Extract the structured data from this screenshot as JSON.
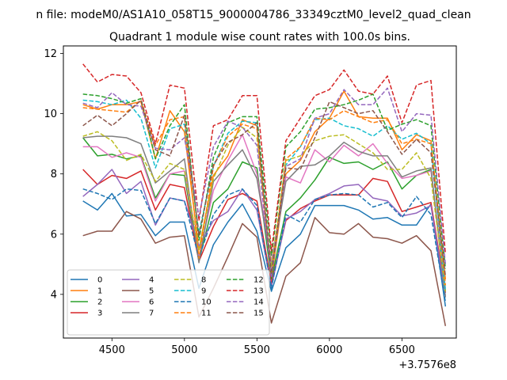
{
  "suptitle": "n file: modeM0/AS1A10_058T15_9000004786_33349cztM0_level2_quad_clean",
  "chart_data": {
    "type": "line",
    "title": "Quadrant 1 module wise count rates with 100.0s bins.",
    "xlabel": "",
    "ylabel": "",
    "x_offset_label": "+3.7576e8",
    "xlim": [
      4165,
      6875
    ],
    "ylim": [
      2.55,
      12.25
    ],
    "xticks": [
      4500,
      5000,
      5500,
      6000,
      6500
    ],
    "yticks": [
      4,
      6,
      8,
      10,
      12
    ],
    "grid": false,
    "legend_position": "lower-left",
    "x": [
      4300,
      4400,
      4500,
      4600,
      4700,
      4800,
      4900,
      5000,
      5100,
      5200,
      5300,
      5400,
      5500,
      5600,
      5700,
      5800,
      5900,
      6000,
      6100,
      6200,
      6300,
      6400,
      6500,
      6600,
      6700,
      6800
    ],
    "series": [
      {
        "name": "0",
        "color": "#1f77b4",
        "dash": "solid",
        "values": [
          7.1,
          6.8,
          7.35,
          6.6,
          6.65,
          5.95,
          6.4,
          6.4,
          4.2,
          5.65,
          6.4,
          7.0,
          6.1,
          4.1,
          5.55,
          6.0,
          6.95,
          6.95,
          6.95,
          6.8,
          6.5,
          6.55,
          6.3,
          6.3,
          7.0,
          3.6
        ]
      },
      {
        "name": "1",
        "color": "#ff7f0e",
        "dash": "solid",
        "values": [
          10.3,
          10.15,
          10.3,
          10.3,
          10.4,
          8.5,
          10.1,
          9.4,
          5.5,
          7.95,
          8.6,
          9.8,
          9.6,
          4.5,
          8.0,
          8.45,
          9.4,
          9.85,
          10.75,
          9.9,
          9.85,
          9.85,
          8.8,
          9.3,
          9.1,
          4.5
        ]
      },
      {
        "name": "2",
        "color": "#2ca02c",
        "dash": "solid",
        "values": [
          9.2,
          8.6,
          8.65,
          8.5,
          8.6,
          7.2,
          8.0,
          7.95,
          5.1,
          7.05,
          7.5,
          8.4,
          8.2,
          4.5,
          6.75,
          7.2,
          7.8,
          8.55,
          8.35,
          8.4,
          8.15,
          8.4,
          7.5,
          7.95,
          8.15,
          4.1
        ]
      },
      {
        "name": "3",
        "color": "#d62728",
        "dash": "solid",
        "values": [
          8.15,
          7.65,
          7.95,
          7.85,
          8.1,
          6.8,
          7.65,
          7.55,
          5.1,
          6.25,
          7.15,
          7.35,
          7.1,
          4.35,
          6.45,
          6.85,
          7.1,
          7.3,
          7.3,
          7.3,
          7.85,
          7.75,
          6.75,
          6.9,
          7.05,
          4.05
        ]
      },
      {
        "name": "4",
        "color": "#9467bd",
        "dash": "solid",
        "values": [
          7.25,
          7.65,
          8.15,
          7.35,
          7.75,
          6.3,
          7.2,
          7.1,
          5.6,
          6.45,
          6.75,
          7.5,
          6.8,
          4.25,
          6.5,
          6.75,
          7.15,
          7.35,
          7.6,
          7.65,
          7.2,
          7.1,
          6.6,
          6.7,
          6.95,
          3.95
        ]
      },
      {
        "name": "5",
        "color": "#8c564b",
        "dash": "solid",
        "values": [
          5.95,
          6.1,
          6.1,
          6.75,
          6.5,
          5.7,
          5.9,
          5.95,
          3.25,
          4.2,
          5.25,
          6.35,
          5.9,
          3.05,
          4.6,
          5.05,
          6.55,
          6.05,
          6.0,
          6.35,
          5.9,
          5.85,
          5.7,
          5.95,
          5.45,
          2.95
        ]
      },
      {
        "name": "6",
        "color": "#e377c2",
        "dash": "solid",
        "values": [
          8.9,
          8.9,
          8.55,
          8.7,
          8.55,
          7.1,
          8.0,
          8.1,
          5.25,
          7.45,
          8.45,
          9.3,
          8.0,
          5.1,
          7.9,
          7.7,
          8.8,
          8.4,
          8.95,
          8.6,
          9.0,
          8.35,
          7.85,
          7.95,
          8.1,
          4.2
        ]
      },
      {
        "name": "7",
        "color": "#7f7f7f",
        "dash": "solid",
        "values": [
          9.2,
          9.25,
          9.25,
          9.2,
          9.0,
          7.7,
          8.1,
          8.5,
          5.05,
          7.75,
          8.3,
          8.8,
          7.85,
          4.95,
          7.75,
          8.25,
          8.3,
          8.6,
          9.05,
          8.75,
          8.6,
          8.6,
          7.9,
          8.1,
          8.2,
          3.9
        ]
      },
      {
        "name": "8",
        "color": "#bcbd22",
        "dash": "dashed",
        "values": [
          9.25,
          9.4,
          9.1,
          8.45,
          8.65,
          7.75,
          8.35,
          8.15,
          5.45,
          7.85,
          8.95,
          9.55,
          9.2,
          4.9,
          8.45,
          8.6,
          9.1,
          9.25,
          9.3,
          9.0,
          8.7,
          8.15,
          8.15,
          8.7,
          7.85,
          4.1
        ]
      },
      {
        "name": "9",
        "color": "#17becf",
        "dash": "dashed",
        "values": [
          10.45,
          10.4,
          10.3,
          10.45,
          9.85,
          8.2,
          9.5,
          9.65,
          6.05,
          8.25,
          9.35,
          9.75,
          9.7,
          4.7,
          8.3,
          8.9,
          9.8,
          9.85,
          9.6,
          9.5,
          9.25,
          9.6,
          9.15,
          9.35,
          9.0,
          4.1
        ]
      },
      {
        "name": "10",
        "color": "#1f77b4",
        "dash": "dashed",
        "values": [
          7.5,
          7.35,
          7.15,
          7.5,
          7.45,
          6.35,
          7.2,
          7.1,
          5.2,
          6.65,
          7.3,
          7.5,
          6.95,
          4.2,
          6.65,
          6.4,
          7.15,
          7.3,
          7.35,
          7.3,
          6.9,
          7.05,
          6.55,
          7.25,
          6.65,
          3.75
        ]
      },
      {
        "name": "11",
        "color": "#ff7f0e",
        "dash": "dashed",
        "values": [
          10.2,
          10.15,
          10.1,
          10.05,
          10.45,
          8.95,
          9.8,
          9.9,
          5.2,
          8.25,
          9.25,
          9.65,
          9.5,
          4.6,
          8.5,
          8.9,
          9.85,
          9.8,
          10.1,
          9.9,
          9.7,
          9.8,
          9.0,
          9.15,
          9.0,
          4.3
        ]
      },
      {
        "name": "12",
        "color": "#2ca02c",
        "dash": "dashed",
        "values": [
          10.65,
          10.6,
          10.5,
          10.35,
          10.5,
          8.5,
          9.6,
          10.3,
          5.8,
          8.55,
          9.7,
          9.9,
          9.9,
          5.3,
          8.9,
          9.4,
          10.15,
          10.2,
          10.3,
          10.45,
          10.65,
          9.45,
          9.65,
          9.8,
          9.6,
          4.85
        ]
      },
      {
        "name": "13",
        "color": "#d62728",
        "dash": "dashed",
        "values": [
          11.65,
          11.05,
          11.3,
          11.25,
          10.7,
          9.0,
          10.95,
          10.85,
          6.45,
          9.6,
          9.8,
          10.6,
          10.6,
          5.45,
          9.1,
          9.85,
          10.6,
          10.8,
          11.45,
          10.75,
          10.65,
          11.25,
          9.7,
          10.95,
          11.1,
          5.35
        ]
      },
      {
        "name": "14",
        "color": "#9467bd",
        "dash": "dashed",
        "values": [
          10.35,
          10.2,
          10.7,
          10.3,
          10.25,
          8.85,
          8.8,
          9.2,
          6.6,
          8.9,
          9.75,
          9.55,
          8.95,
          4.55,
          8.25,
          8.5,
          9.85,
          10.0,
          10.8,
          10.3,
          10.3,
          10.85,
          9.4,
          10.0,
          9.95,
          5.0
        ]
      },
      {
        "name": "15",
        "color": "#8c564b",
        "dash": "dashed",
        "values": [
          9.6,
          9.95,
          9.6,
          10.0,
          10.45,
          8.8,
          8.6,
          9.95,
          5.95,
          8.3,
          9.05,
          9.3,
          9.7,
          4.7,
          8.2,
          8.15,
          9.2,
          10.4,
          10.2,
          10.0,
          10.1,
          9.4,
          8.65,
          9.15,
          8.7,
          4.6
        ]
      }
    ]
  }
}
